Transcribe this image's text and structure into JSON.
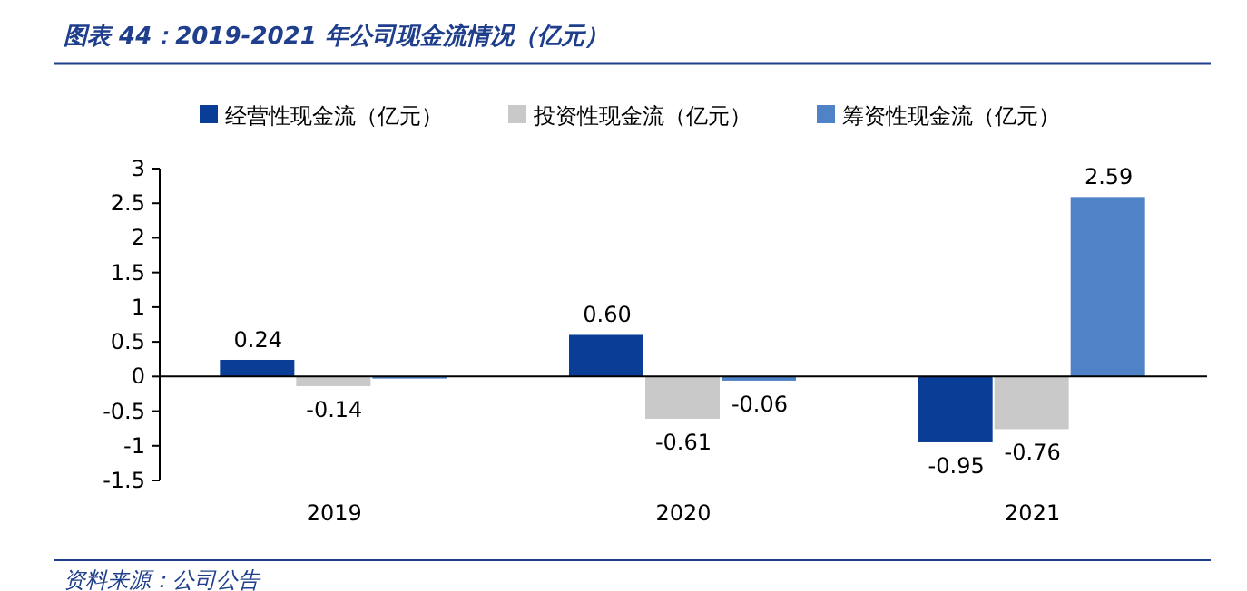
{
  "chart_data": {
    "type": "bar",
    "title": "图表 44：2019-2021 年公司现金流情况（亿元）",
    "annotations": [
      "资料来源：公司公告"
    ],
    "categories": [
      "2019",
      "2020",
      "2021"
    ],
    "series": [
      {
        "name": "经营性现金流（亿元）",
        "color": "#0a3d96",
        "values": [
          0.24,
          0.6,
          -0.95
        ],
        "value_labels": [
          "0.24",
          "0.60",
          "-0.95"
        ]
      },
      {
        "name": "投资性现金流（亿元）",
        "color": "#c9c9c9",
        "values": [
          -0.14,
          -0.61,
          -0.76
        ],
        "value_labels": [
          "-0.14",
          "-0.61",
          "-0.76"
        ]
      },
      {
        "name": "筹资性现金流（亿元）",
        "color": "#4f82c6",
        "values": [
          -0.03,
          -0.06,
          2.59
        ],
        "value_labels": [
          null,
          "-0.06",
          "2.59"
        ]
      }
    ],
    "ylim": [
      -1.5,
      3
    ],
    "yticks": [
      -1.5,
      -1,
      -0.5,
      0,
      0.5,
      1,
      1.5,
      2,
      2.5,
      3
    ],
    "legend": "top"
  }
}
